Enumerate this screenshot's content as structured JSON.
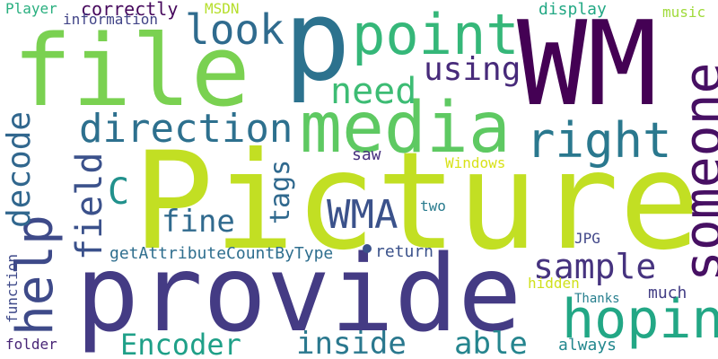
{
  "words": [
    {
      "text": "Picture",
      "color": "#c2df23"
    },
    {
      "text": "provide",
      "color": "#443b84"
    },
    {
      "text": "file",
      "color": "#7ad151"
    },
    {
      "text": "WM",
      "color": "#440154"
    },
    {
      "text": "p",
      "color": "#2c728e"
    },
    {
      "text": "media",
      "color": "#5ec962"
    },
    {
      "text": "point",
      "color": "#35b779"
    },
    {
      "text": "someone",
      "color": "#471063"
    },
    {
      "text": "hoping",
      "color": "#3e4a89"
    },
    {
      "text": "help",
      "color": "#22a785"
    },
    {
      "text": "right",
      "color": "#2a788e"
    },
    {
      "text": "direction",
      "color": "#2d708e"
    },
    {
      "text": "look",
      "color": "#2f6b8e"
    },
    {
      "text": "need",
      "color": "#3dbc74"
    },
    {
      "text": "using",
      "color": "#472a7a"
    },
    {
      "text": "decode",
      "color": "#31678e"
    },
    {
      "text": "field",
      "color": "#3b518b"
    },
    {
      "text": "tags",
      "color": "#30698e"
    },
    {
      "text": "C",
      "color": "#21918c"
    },
    {
      "text": "WMA",
      "color": "#3b528b"
    },
    {
      "text": "fine",
      "color": "#306a8e"
    },
    {
      "text": "sample",
      "color": "#46337f"
    },
    {
      "text": "inside",
      "color": "#2a788e"
    },
    {
      "text": "able",
      "color": "#25858e"
    },
    {
      "text": "Encoder",
      "color": "#1fa088"
    },
    {
      "text": "getAttributeCountByType",
      "color": "#2e6e8e"
    },
    {
      "text": "return",
      "color": "#3b528b"
    },
    {
      "text": "JPG",
      "color": "#404688"
    },
    {
      "text": "hidden",
      "color": "#d0e11c"
    },
    {
      "text": "Thanks",
      "color": "#277f8e"
    },
    {
      "text": "much",
      "color": "#433e85"
    },
    {
      "text": "always",
      "color": "#23888e"
    },
    {
      "text": "folder",
      "color": "#482576"
    },
    {
      "text": "function",
      "color": "#3e4989"
    },
    {
      "text": "saw",
      "color": "#46307e"
    },
    {
      "text": "two",
      "color": "#297b8e"
    },
    {
      "text": "Windows",
      "color": "#d8e219"
    },
    {
      "text": "Player",
      "color": "#29af7f"
    },
    {
      "text": "correctly",
      "color": "#46085c"
    },
    {
      "text": "information",
      "color": "#414487"
    },
    {
      "text": "MSDN",
      "color": "#b5de2b"
    },
    {
      "text": "display",
      "color": "#22a884"
    },
    {
      "text": "music",
      "color": "#9fda3a"
    }
  ]
}
